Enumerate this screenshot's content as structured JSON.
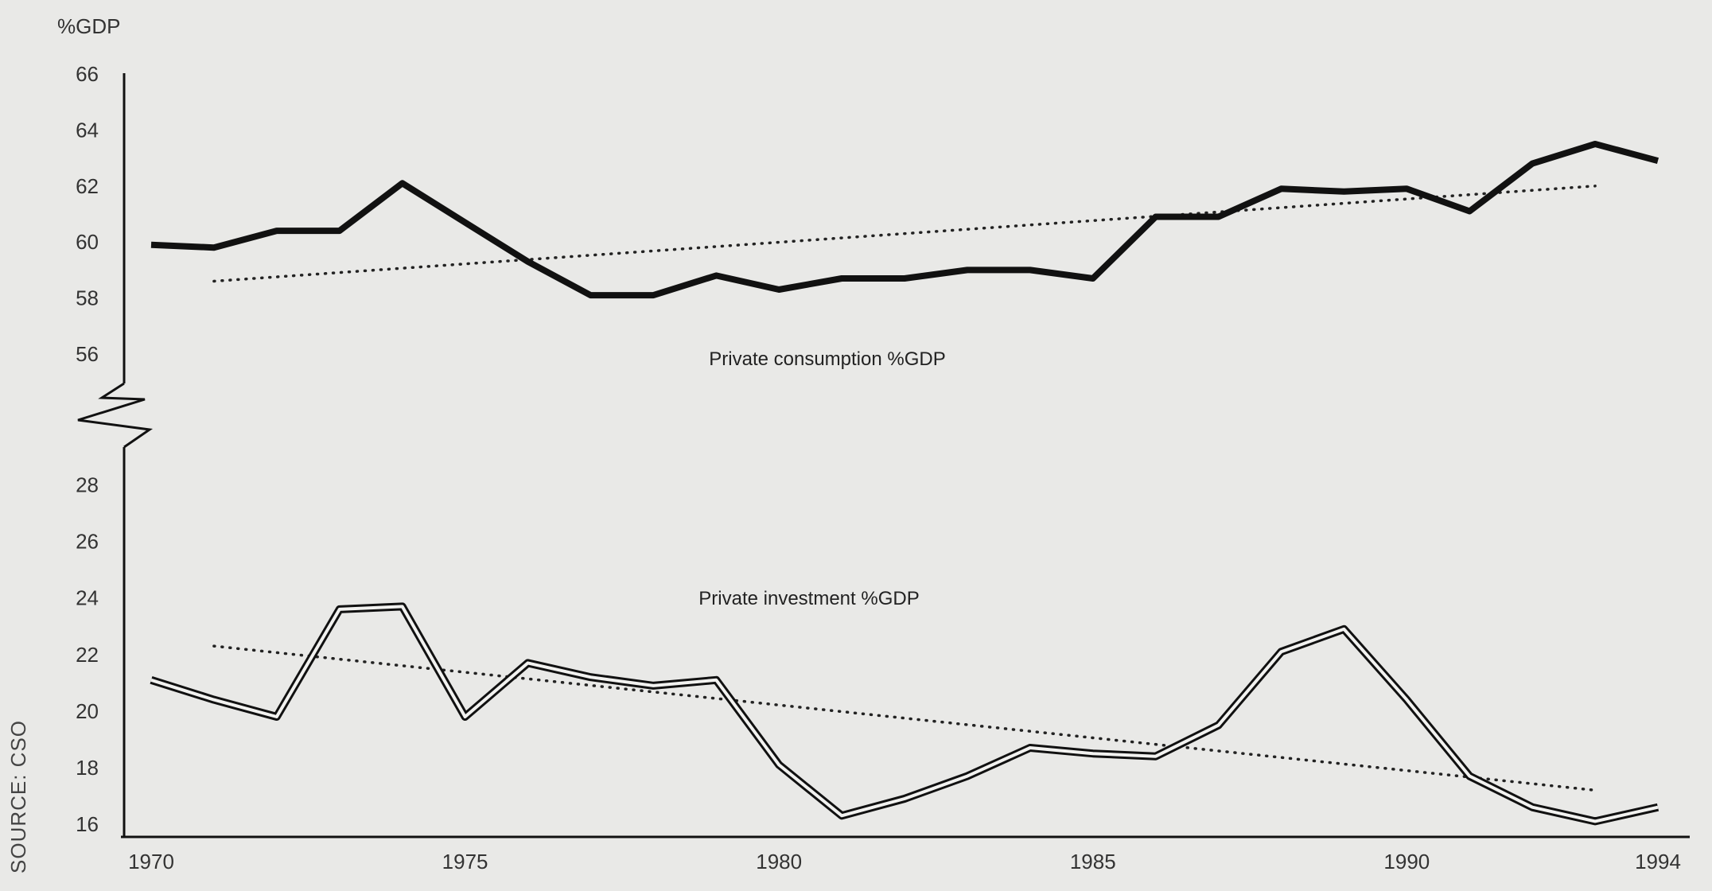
{
  "chart_data": {
    "type": "line",
    "yunit": "%GDP",
    "xlim": [
      1970,
      1994
    ],
    "x_ticks": [
      "1970",
      "1975",
      "1980",
      "1985",
      "1990",
      "1994"
    ],
    "axis_break": true,
    "upper_panel": {
      "ylim": [
        56,
        66
      ],
      "y_ticks": [
        "66",
        "64",
        "62",
        "60",
        "58",
        "56"
      ]
    },
    "lower_panel": {
      "ylim": [
        16,
        29
      ],
      "y_ticks": [
        "28",
        "26",
        "24",
        "22",
        "20",
        "18",
        "16"
      ]
    },
    "series": [
      {
        "name": "Private consumption %GDP",
        "panel": "upper",
        "style": "solid-thick",
        "color": "#111111",
        "x": [
          1970,
          1971,
          1972,
          1973,
          1974,
          1975,
          1976,
          1977,
          1978,
          1979,
          1980,
          1981,
          1982,
          1983,
          1984,
          1985,
          1986,
          1987,
          1988,
          1989,
          1990,
          1991,
          1992,
          1993,
          1994
        ],
        "values": [
          59.9,
          59.8,
          60.4,
          60.4,
          62.1,
          60.7,
          59.3,
          58.1,
          58.1,
          58.8,
          58.3,
          58.7,
          58.7,
          59.0,
          59.0,
          58.7,
          60.9,
          60.9,
          61.9,
          61.8,
          61.9,
          61.1,
          62.8,
          63.5,
          62.9
        ]
      },
      {
        "name": "Private investment %GDP",
        "panel": "lower",
        "style": "double-line",
        "color": "#111111",
        "x": [
          1970,
          1971,
          1972,
          1973,
          1974,
          1975,
          1976,
          1977,
          1978,
          1979,
          1980,
          1981,
          1982,
          1983,
          1984,
          1985,
          1986,
          1987,
          1988,
          1989,
          1990,
          1991,
          1992,
          1993,
          1994
        ],
        "values": [
          21.1,
          20.4,
          19.8,
          23.6,
          23.7,
          19.8,
          21.7,
          21.2,
          20.9,
          21.1,
          18.1,
          16.3,
          16.9,
          17.7,
          18.7,
          18.5,
          18.4,
          19.5,
          22.1,
          22.9,
          20.4,
          17.7,
          16.6,
          16.1,
          16.6
        ]
      }
    ],
    "trendlines": [
      {
        "panel": "upper",
        "style": "dotted",
        "x": [
          1971,
          1993
        ],
        "values": [
          58.6,
          62.0
        ]
      },
      {
        "panel": "lower",
        "style": "dotted",
        "x": [
          1971,
          1993
        ],
        "values": [
          22.3,
          17.2
        ]
      }
    ],
    "source": "SOURCE: CSO"
  }
}
